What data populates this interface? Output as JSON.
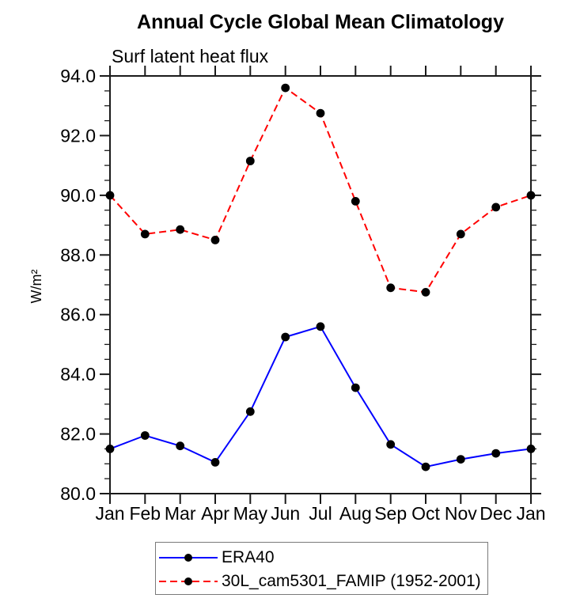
{
  "chart_data": {
    "type": "line",
    "title": "Annual Cycle Global Mean Climatology",
    "subtitle": "Surf latent heat flux",
    "ylabel": "W/m²",
    "xlabel": "",
    "categories": [
      "Jan",
      "Feb",
      "Mar",
      "Apr",
      "May",
      "Jun",
      "Jul",
      "Aug",
      "Sep",
      "Oct",
      "Nov",
      "Dec",
      "Jan"
    ],
    "ylim": [
      80.0,
      94.0
    ],
    "ytick_major_interval": 2.0,
    "ytick_minor_interval": 0.5,
    "ytick_labels": [
      "80.0",
      "82.0",
      "84.0",
      "86.0",
      "88.0",
      "90.0",
      "92.0",
      "94.0"
    ],
    "grid": false,
    "legend_position": "bottom-outside-boxed",
    "series": [
      {
        "name": "ERA40",
        "line_color": "#0000ff",
        "line_style": "solid",
        "marker": "filled-circle",
        "marker_color": "#000000",
        "values": [
          81.5,
          81.95,
          81.6,
          81.05,
          82.75,
          85.25,
          85.6,
          83.55,
          81.65,
          80.9,
          81.15,
          81.35,
          81.5
        ]
      },
      {
        "name": "30L_cam5301_FAMIP (1952-2001)",
        "line_color": "#ff0000",
        "line_style": "dashed",
        "marker": "filled-circle",
        "marker_color": "#000000",
        "values": [
          90.0,
          88.7,
          88.85,
          88.5,
          91.15,
          93.6,
          92.75,
          89.8,
          86.9,
          86.75,
          88.7,
          89.6,
          90.0
        ]
      }
    ]
  },
  "colors": {
    "background": "#ffffff",
    "axis": "#1a1a1a",
    "text": "#000000",
    "legend_border": "#7a7a7a",
    "series_blue": "#0000ff",
    "series_red": "#ff0000",
    "marker": "#000000"
  }
}
